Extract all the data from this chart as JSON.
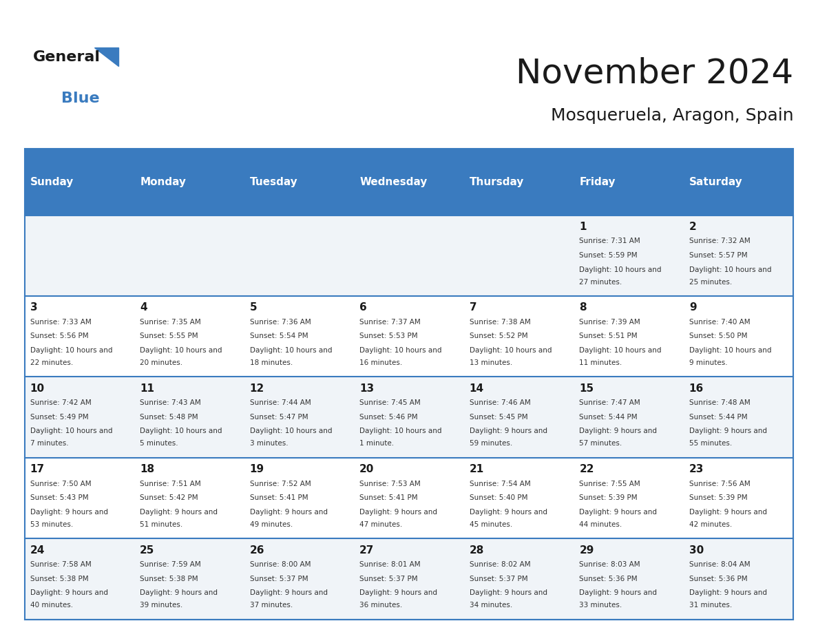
{
  "title": "November 2024",
  "subtitle": "Mosqueruela, Aragon, Spain",
  "header_bg": "#3a7bbf",
  "header_text_color": "#ffffff",
  "cell_bg_odd": "#f0f4f8",
  "cell_bg_even": "#ffffff",
  "border_color": "#3a7bbf",
  "day_names": [
    "Sunday",
    "Monday",
    "Tuesday",
    "Wednesday",
    "Thursday",
    "Friday",
    "Saturday"
  ],
  "days": [
    {
      "day": 1,
      "col": 5,
      "row": 0,
      "sunrise": "7:31 AM",
      "sunset": "5:59 PM",
      "daylight": "10 hours and 27 minutes."
    },
    {
      "day": 2,
      "col": 6,
      "row": 0,
      "sunrise": "7:32 AM",
      "sunset": "5:57 PM",
      "daylight": "10 hours and 25 minutes."
    },
    {
      "day": 3,
      "col": 0,
      "row": 1,
      "sunrise": "7:33 AM",
      "sunset": "5:56 PM",
      "daylight": "10 hours and 22 minutes."
    },
    {
      "day": 4,
      "col": 1,
      "row": 1,
      "sunrise": "7:35 AM",
      "sunset": "5:55 PM",
      "daylight": "10 hours and 20 minutes."
    },
    {
      "day": 5,
      "col": 2,
      "row": 1,
      "sunrise": "7:36 AM",
      "sunset": "5:54 PM",
      "daylight": "10 hours and 18 minutes."
    },
    {
      "day": 6,
      "col": 3,
      "row": 1,
      "sunrise": "7:37 AM",
      "sunset": "5:53 PM",
      "daylight": "10 hours and 16 minutes."
    },
    {
      "day": 7,
      "col": 4,
      "row": 1,
      "sunrise": "7:38 AM",
      "sunset": "5:52 PM",
      "daylight": "10 hours and 13 minutes."
    },
    {
      "day": 8,
      "col": 5,
      "row": 1,
      "sunrise": "7:39 AM",
      "sunset": "5:51 PM",
      "daylight": "10 hours and 11 minutes."
    },
    {
      "day": 9,
      "col": 6,
      "row": 1,
      "sunrise": "7:40 AM",
      "sunset": "5:50 PM",
      "daylight": "10 hours and 9 minutes."
    },
    {
      "day": 10,
      "col": 0,
      "row": 2,
      "sunrise": "7:42 AM",
      "sunset": "5:49 PM",
      "daylight": "10 hours and 7 minutes."
    },
    {
      "day": 11,
      "col": 1,
      "row": 2,
      "sunrise": "7:43 AM",
      "sunset": "5:48 PM",
      "daylight": "10 hours and 5 minutes."
    },
    {
      "day": 12,
      "col": 2,
      "row": 2,
      "sunrise": "7:44 AM",
      "sunset": "5:47 PM",
      "daylight": "10 hours and 3 minutes."
    },
    {
      "day": 13,
      "col": 3,
      "row": 2,
      "sunrise": "7:45 AM",
      "sunset": "5:46 PM",
      "daylight": "10 hours and 1 minute."
    },
    {
      "day": 14,
      "col": 4,
      "row": 2,
      "sunrise": "7:46 AM",
      "sunset": "5:45 PM",
      "daylight": "9 hours and 59 minutes."
    },
    {
      "day": 15,
      "col": 5,
      "row": 2,
      "sunrise": "7:47 AM",
      "sunset": "5:44 PM",
      "daylight": "9 hours and 57 minutes."
    },
    {
      "day": 16,
      "col": 6,
      "row": 2,
      "sunrise": "7:48 AM",
      "sunset": "5:44 PM",
      "daylight": "9 hours and 55 minutes."
    },
    {
      "day": 17,
      "col": 0,
      "row": 3,
      "sunrise": "7:50 AM",
      "sunset": "5:43 PM",
      "daylight": "9 hours and 53 minutes."
    },
    {
      "day": 18,
      "col": 1,
      "row": 3,
      "sunrise": "7:51 AM",
      "sunset": "5:42 PM",
      "daylight": "9 hours and 51 minutes."
    },
    {
      "day": 19,
      "col": 2,
      "row": 3,
      "sunrise": "7:52 AM",
      "sunset": "5:41 PM",
      "daylight": "9 hours and 49 minutes."
    },
    {
      "day": 20,
      "col": 3,
      "row": 3,
      "sunrise": "7:53 AM",
      "sunset": "5:41 PM",
      "daylight": "9 hours and 47 minutes."
    },
    {
      "day": 21,
      "col": 4,
      "row": 3,
      "sunrise": "7:54 AM",
      "sunset": "5:40 PM",
      "daylight": "9 hours and 45 minutes."
    },
    {
      "day": 22,
      "col": 5,
      "row": 3,
      "sunrise": "7:55 AM",
      "sunset": "5:39 PM",
      "daylight": "9 hours and 44 minutes."
    },
    {
      "day": 23,
      "col": 6,
      "row": 3,
      "sunrise": "7:56 AM",
      "sunset": "5:39 PM",
      "daylight": "9 hours and 42 minutes."
    },
    {
      "day": 24,
      "col": 0,
      "row": 4,
      "sunrise": "7:58 AM",
      "sunset": "5:38 PM",
      "daylight": "9 hours and 40 minutes."
    },
    {
      "day": 25,
      "col": 1,
      "row": 4,
      "sunrise": "7:59 AM",
      "sunset": "5:38 PM",
      "daylight": "9 hours and 39 minutes."
    },
    {
      "day": 26,
      "col": 2,
      "row": 4,
      "sunrise": "8:00 AM",
      "sunset": "5:37 PM",
      "daylight": "9 hours and 37 minutes."
    },
    {
      "day": 27,
      "col": 3,
      "row": 4,
      "sunrise": "8:01 AM",
      "sunset": "5:37 PM",
      "daylight": "9 hours and 36 minutes."
    },
    {
      "day": 28,
      "col": 4,
      "row": 4,
      "sunrise": "8:02 AM",
      "sunset": "5:37 PM",
      "daylight": "9 hours and 34 minutes."
    },
    {
      "day": 29,
      "col": 5,
      "row": 4,
      "sunrise": "8:03 AM",
      "sunset": "5:36 PM",
      "daylight": "9 hours and 33 minutes."
    },
    {
      "day": 30,
      "col": 6,
      "row": 4,
      "sunrise": "8:04 AM",
      "sunset": "5:36 PM",
      "daylight": "9 hours and 31 minutes."
    }
  ]
}
